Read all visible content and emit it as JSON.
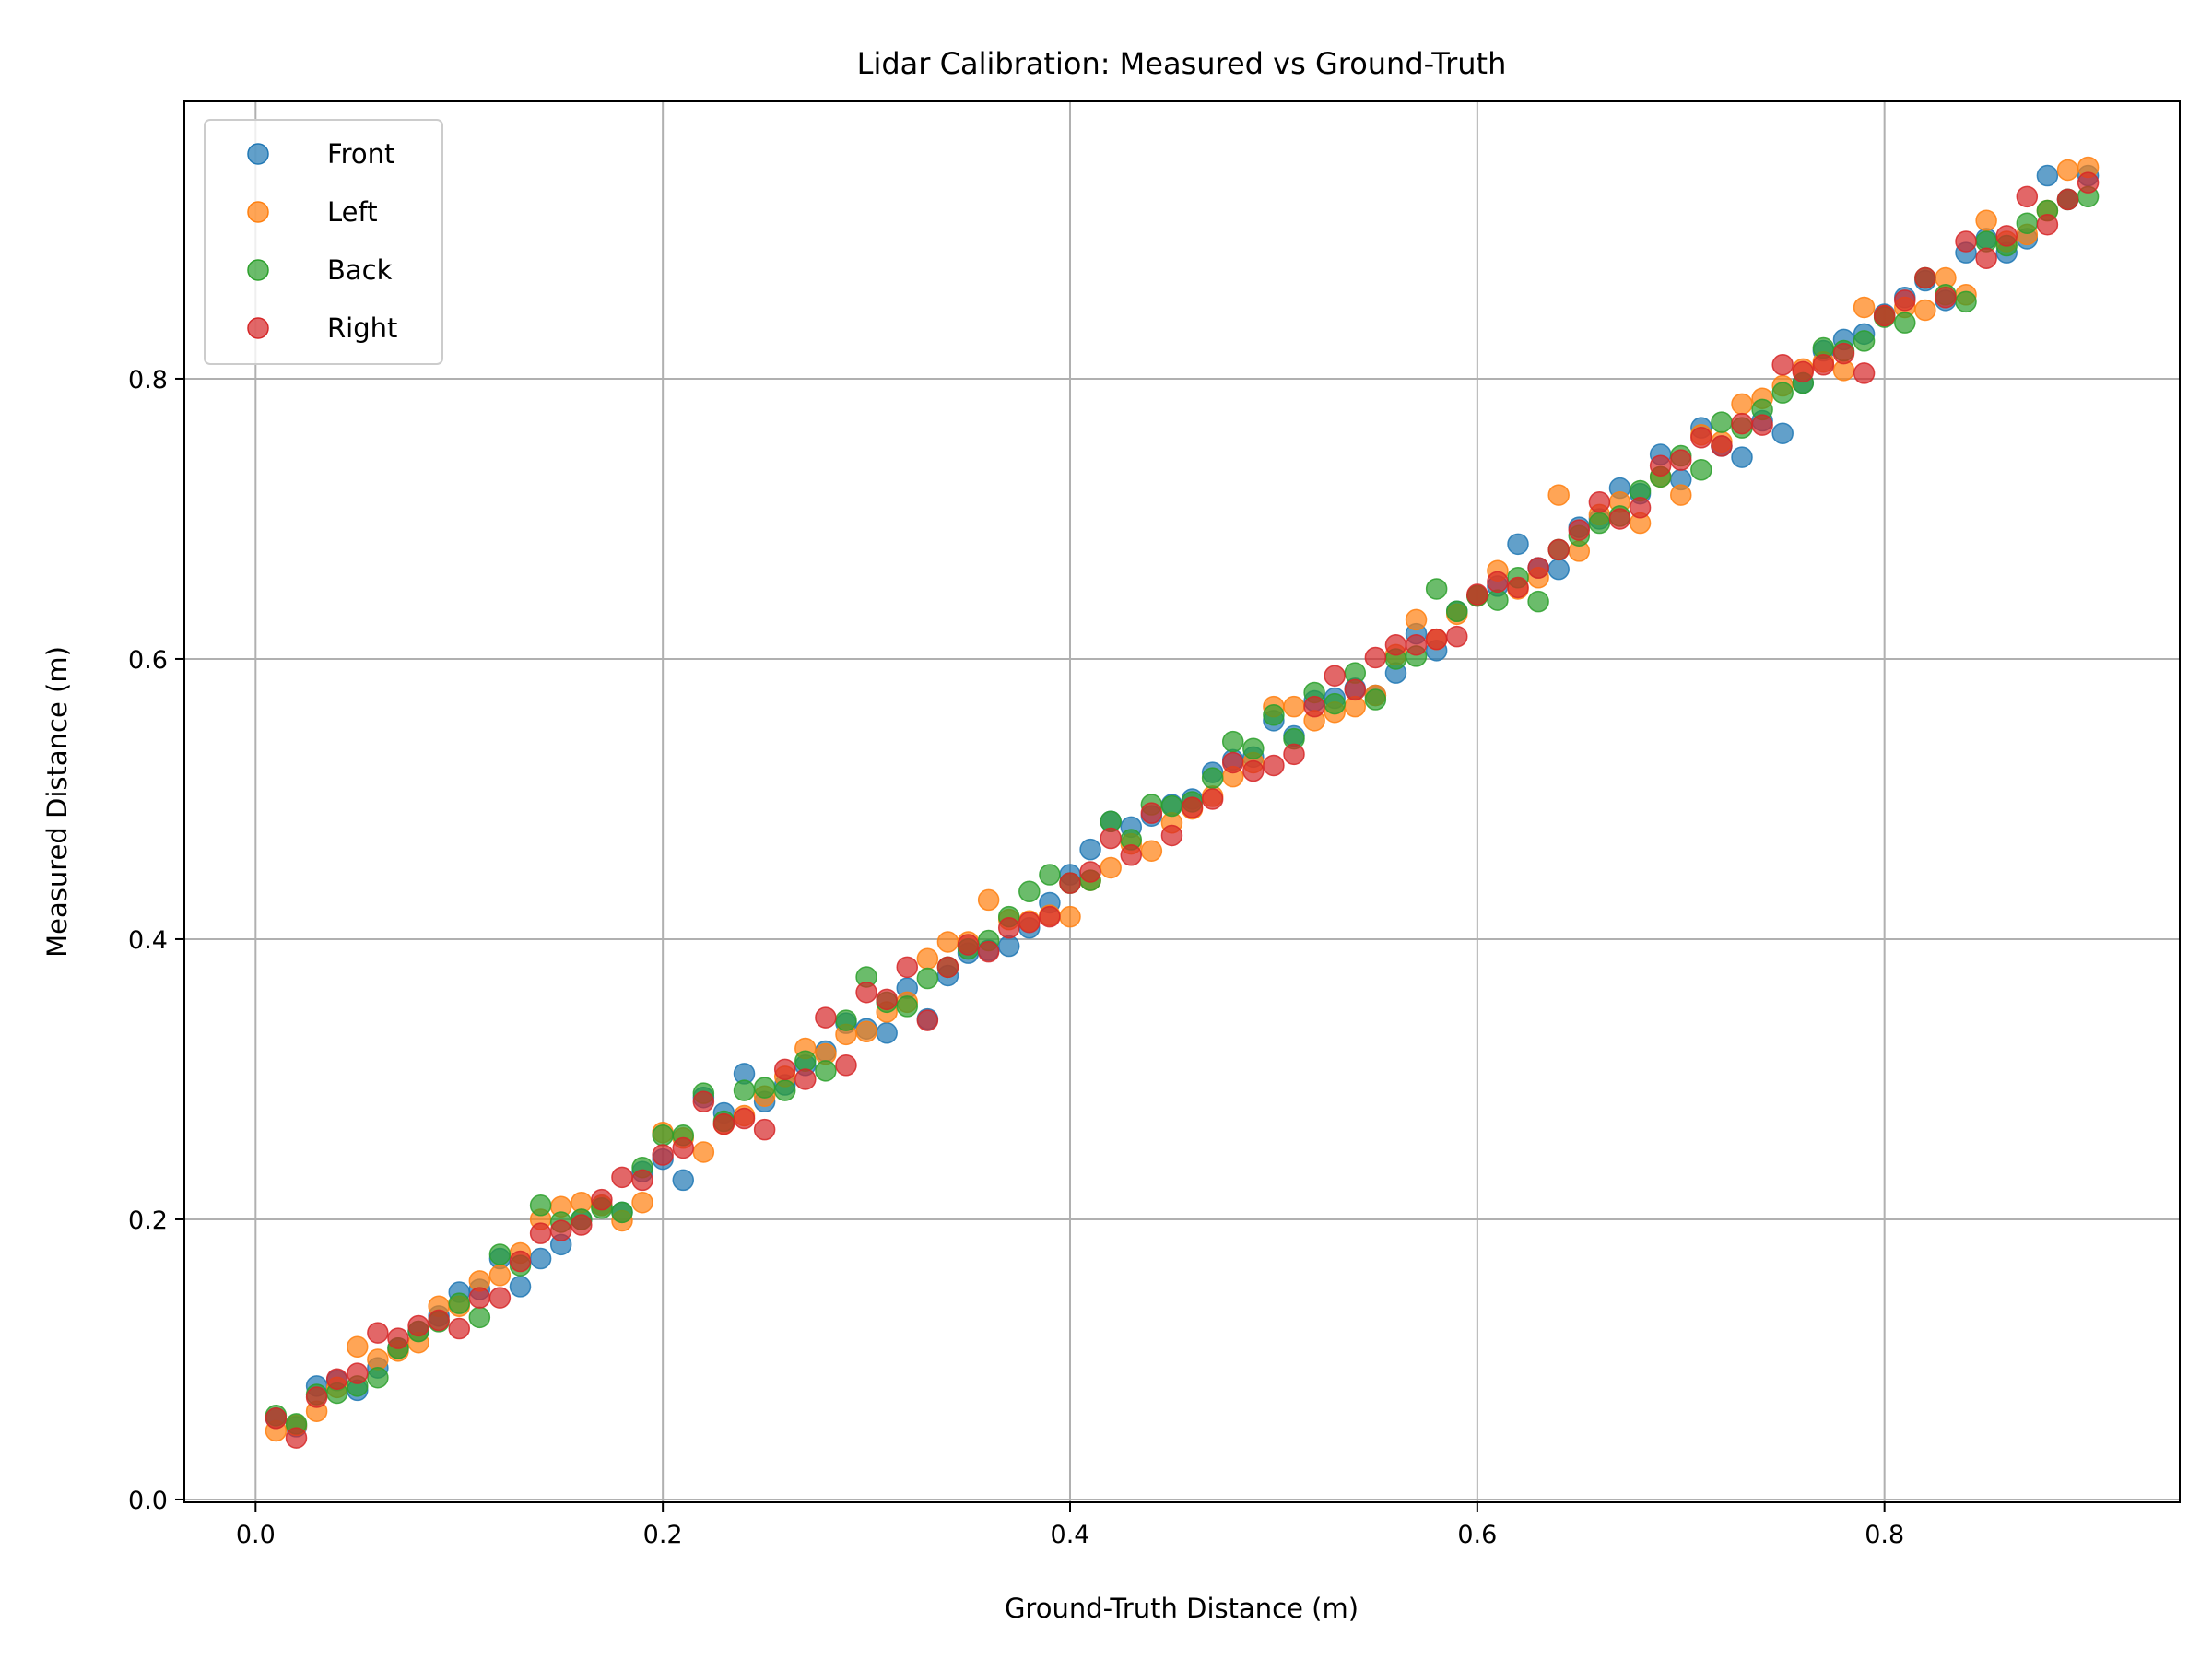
{
  "chart_data": {
    "type": "scatter",
    "title": "Lidar Calibration: Measured vs Ground-Truth",
    "xlabel": "Ground-Truth Distance (m)",
    "ylabel": "Measured Distance (m)",
    "xlim": [
      -0.035,
      0.945
    ],
    "ylim": [
      -0.002,
      0.998
    ],
    "xticks": [
      0.0,
      0.2,
      0.4,
      0.6,
      0.8
    ],
    "xtick_labels": [
      "0.0",
      "0.2",
      "0.4",
      "0.6",
      "0.8"
    ],
    "yticks": [
      0.0,
      0.2,
      0.4,
      0.6,
      0.8
    ],
    "ytick_labels": [
      "0.0",
      "0.2",
      "0.4",
      "0.6",
      "0.8"
    ],
    "grid": true,
    "legend_position": "upper-left",
    "x": [
      0.01,
      0.02,
      0.03,
      0.04,
      0.05,
      0.06,
      0.07,
      0.08,
      0.09,
      0.1,
      0.11,
      0.12,
      0.13,
      0.14,
      0.15,
      0.16,
      0.17,
      0.18,
      0.19,
      0.2,
      0.21,
      0.22,
      0.23,
      0.24,
      0.25,
      0.26,
      0.27,
      0.28,
      0.29,
      0.3,
      0.31,
      0.32,
      0.33,
      0.34,
      0.35,
      0.36,
      0.37,
      0.38,
      0.39,
      0.4,
      0.41,
      0.42,
      0.43,
      0.44,
      0.45,
      0.46,
      0.47,
      0.48,
      0.49,
      0.5,
      0.51,
      0.52,
      0.53,
      0.54,
      0.55,
      0.56,
      0.57,
      0.58,
      0.59,
      0.6,
      0.61,
      0.62,
      0.63,
      0.64,
      0.65,
      0.66,
      0.67,
      0.68,
      0.69,
      0.7,
      0.71,
      0.72,
      0.73,
      0.74,
      0.75,
      0.76,
      0.77,
      0.78,
      0.79,
      0.8,
      0.81,
      0.82,
      0.83,
      0.84,
      0.85,
      0.86,
      0.87,
      0.88,
      0.89,
      0.9
    ],
    "series": [
      {
        "name": "Front",
        "color": "#1f77b4",
        "values": [
          0.058,
          0.052,
          0.081,
          0.085,
          0.078,
          0.094,
          0.108,
          0.12,
          0.131,
          0.148,
          0.15,
          0.172,
          0.152,
          0.172,
          0.182,
          0.2,
          0.21,
          0.205,
          0.234,
          0.243,
          0.228,
          0.287,
          0.276,
          0.304,
          0.284,
          0.296,
          0.31,
          0.32,
          0.34,
          0.336,
          0.333,
          0.365,
          0.343,
          0.374,
          0.39,
          0.392,
          0.395,
          0.408,
          0.426,
          0.446,
          0.464,
          0.484,
          0.48,
          0.488,
          0.496,
          0.5,
          0.519,
          0.528,
          0.53,
          0.556,
          0.545,
          0.57,
          0.572,
          0.579,
          0.574,
          0.59,
          0.618,
          0.606,
          0.634,
          0.645,
          0.652,
          0.682,
          0.665,
          0.664,
          0.694,
          0.7,
          0.722,
          0.718,
          0.746,
          0.728,
          0.765,
          0.752,
          0.744,
          0.77,
          0.761,
          0.797,
          0.82,
          0.828,
          0.832,
          0.846,
          0.858,
          0.87,
          0.856,
          0.89,
          0.9,
          0.89,
          0.9,
          0.945,
          0.928,
          0.945
        ]
      },
      {
        "name": "Left",
        "color": "#ff7f0e",
        "values": [
          0.049,
          0.053,
          0.063,
          0.08,
          0.109,
          0.1,
          0.106,
          0.112,
          0.138,
          0.138,
          0.156,
          0.16,
          0.176,
          0.2,
          0.209,
          0.212,
          0.21,
          0.199,
          0.212,
          0.262,
          0.258,
          0.248,
          0.268,
          0.274,
          0.288,
          0.302,
          0.322,
          0.318,
          0.332,
          0.334,
          0.348,
          0.355,
          0.386,
          0.398,
          0.398,
          0.428,
          0.414,
          0.413,
          0.417,
          0.416,
          0.442,
          0.451,
          0.468,
          0.463,
          0.483,
          0.493,
          0.502,
          0.516,
          0.526,
          0.566,
          0.566,
          0.556,
          0.562,
          0.566,
          0.574,
          0.603,
          0.628,
          0.614,
          0.632,
          0.645,
          0.663,
          0.65,
          0.658,
          0.717,
          0.677,
          0.703,
          0.712,
          0.697,
          0.73,
          0.717,
          0.76,
          0.755,
          0.782,
          0.786,
          0.795,
          0.807,
          0.812,
          0.806,
          0.851,
          0.845,
          0.851,
          0.849,
          0.872,
          0.86,
          0.913,
          0.898,
          0.903,
          0.92,
          0.949,
          0.951
        ]
      },
      {
        "name": "Back",
        "color": "#2ca02c",
        "values": [
          0.06,
          0.054,
          0.075,
          0.076,
          0.081,
          0.087,
          0.108,
          0.12,
          0.127,
          0.14,
          0.13,
          0.175,
          0.167,
          0.21,
          0.198,
          0.2,
          0.208,
          0.205,
          0.237,
          0.26,
          0.26,
          0.29,
          0.27,
          0.292,
          0.294,
          0.292,
          0.313,
          0.306,
          0.342,
          0.373,
          0.355,
          0.352,
          0.372,
          0.38,
          0.393,
          0.399,
          0.416,
          0.434,
          0.446,
          0.44,
          0.442,
          0.484,
          0.471,
          0.496,
          0.495,
          0.498,
          0.515,
          0.541,
          0.536,
          0.56,
          0.543,
          0.576,
          0.568,
          0.59,
          0.571,
          0.6,
          0.602,
          0.65,
          0.634,
          0.645,
          0.642,
          0.658,
          0.641,
          0.678,
          0.688,
          0.697,
          0.702,
          0.72,
          0.73,
          0.745,
          0.735,
          0.769,
          0.765,
          0.778,
          0.79,
          0.797,
          0.822,
          0.82,
          0.827,
          0.844,
          0.84,
          0.872,
          0.86,
          0.855,
          0.898,
          0.895,
          0.911,
          0.92,
          0.928,
          0.93
        ]
      },
      {
        "name": "Right",
        "color": "#d62728",
        "values": [
          0.058,
          0.044,
          0.073,
          0.086,
          0.09,
          0.119,
          0.115,
          0.124,
          0.128,
          0.122,
          0.144,
          0.144,
          0.17,
          0.19,
          0.192,
          0.196,
          0.214,
          0.23,
          0.228,
          0.246,
          0.251,
          0.284,
          0.268,
          0.272,
          0.264,
          0.307,
          0.3,
          0.344,
          0.31,
          0.362,
          0.357,
          0.38,
          0.342,
          0.38,
          0.396,
          0.391,
          0.408,
          0.412,
          0.416,
          0.44,
          0.448,
          0.472,
          0.46,
          0.49,
          0.474,
          0.494,
          0.5,
          0.526,
          0.52,
          0.524,
          0.532,
          0.566,
          0.588,
          0.578,
          0.601,
          0.61,
          0.61,
          0.614,
          0.616,
          0.646,
          0.655,
          0.651,
          0.665,
          0.678,
          0.692,
          0.712,
          0.7,
          0.708,
          0.738,
          0.742,
          0.758,
          0.752,
          0.768,
          0.767,
          0.81,
          0.805,
          0.81,
          0.818,
          0.804,
          0.845,
          0.856,
          0.872,
          0.858,
          0.898,
          0.886,
          0.902,
          0.93,
          0.91,
          0.928,
          0.94
        ]
      }
    ]
  }
}
